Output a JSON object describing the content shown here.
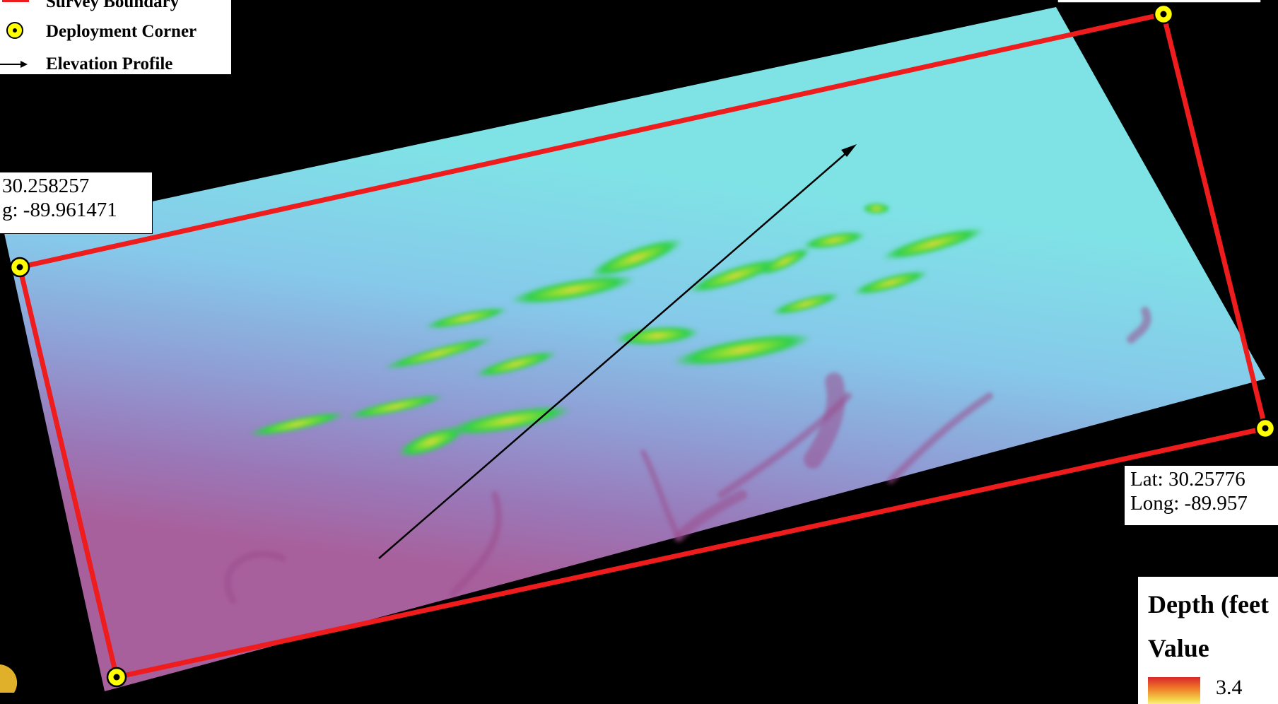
{
  "legend": {
    "items": [
      {
        "label": "Survey Boundary",
        "symbol": "red-box-icon"
      },
      {
        "label": "Deployment Corner",
        "symbol": "yellow-ring-dot-icon"
      },
      {
        "label": "Elevation Profile",
        "symbol": "arrow-right-icon"
      }
    ]
  },
  "corners": {
    "top_left": {
      "lat": "30.258257",
      "long": "g: -89.961471"
    },
    "right": {
      "lat": "Lat: 30.25776",
      "long": "Long: -89.957"
    }
  },
  "depth_legend": {
    "title": "Depth (feet",
    "subtitle": "Value",
    "high_value": "3.4"
  },
  "colors": {
    "boundary": "#ee1c1c",
    "corner_fill": "#ffff00",
    "profile_arrow": "#000000",
    "deep": "#b05a90",
    "shallow_water": "#7fe3e3",
    "shoal_green": "#2ed02e",
    "shoal_peak": "#f0c23a"
  }
}
